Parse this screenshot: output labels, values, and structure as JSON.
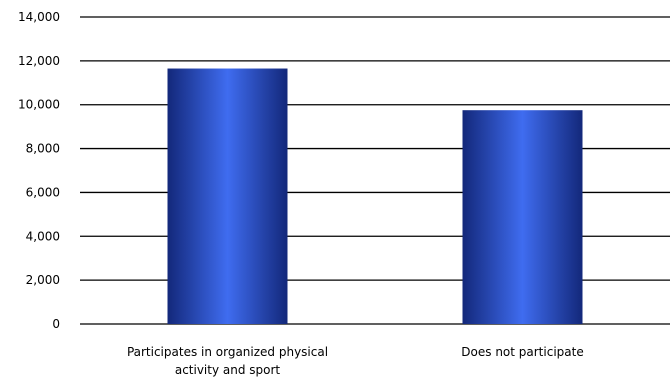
{
  "chart_data": {
    "type": "bar",
    "title": "",
    "xlabel": "",
    "ylabel": "",
    "categories": [
      [
        "Participates in organized physical",
        "activity and sport"
      ],
      [
        "Does not participate"
      ]
    ],
    "values": [
      11650,
      9750
    ],
    "ylim": [
      0,
      14000
    ],
    "yticks": [
      0,
      2000,
      4000,
      6000,
      8000,
      10000,
      12000,
      14000
    ],
    "ytick_labels": [
      "0",
      "2,000",
      "4,000",
      "6,000",
      "8,000",
      "10,000",
      "12,000",
      "14,000"
    ],
    "grid": true,
    "legend": "none",
    "colors": {
      "bar_edge": "#13287a",
      "bar_center": "#3f6cf0",
      "grid": "#000000"
    }
  }
}
